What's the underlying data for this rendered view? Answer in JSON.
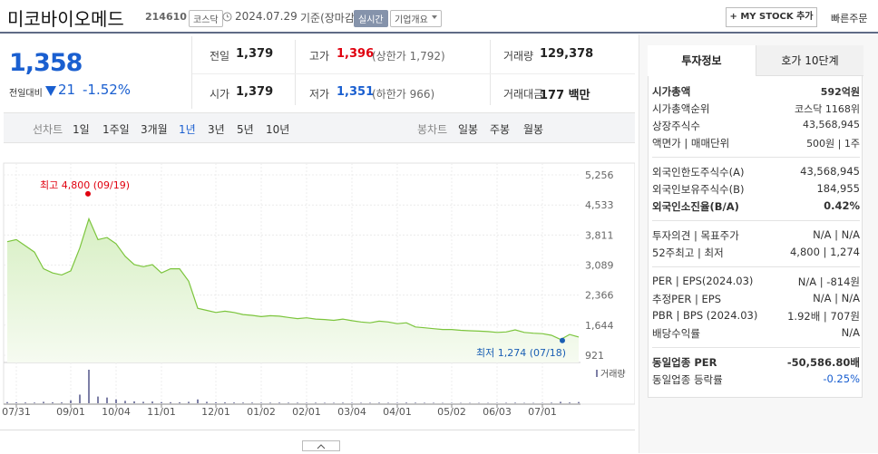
{
  "header": {
    "name": "미코바이오메드",
    "code": "214610",
    "market": "코스닥",
    "date": "2024.07.29",
    "basis": "기준(장마감)",
    "realtime": "실시간",
    "overview": "기업개요",
    "mystock": "+ MY STOCK 추가",
    "quick_order": "빠른주문"
  },
  "price": {
    "current": "1,358",
    "change_label": "전일대비",
    "change": "21",
    "change_pct": "-1.52%"
  },
  "summary": [
    {
      "label": "전일",
      "value": "1,379"
    },
    {
      "label": "고가",
      "value": "1,396",
      "note": "(상한가 1,792)"
    },
    {
      "label": "거래량",
      "value": "129,378"
    },
    {
      "label": "시가",
      "value": "1,379"
    },
    {
      "label": "저가",
      "value": "1,351",
      "note": "(하한가 966)"
    },
    {
      "label": "거래대금",
      "value": "177 백만"
    }
  ],
  "line_tabs": {
    "label": "선차트",
    "items": [
      "1일",
      "1주일",
      "3개월",
      "1년",
      "3년",
      "5년",
      "10년"
    ]
  },
  "candle_tabs": {
    "label": "봉차트",
    "items": [
      "일봉",
      "주봉",
      "월봉"
    ]
  },
  "chart_data": {
    "type": "line",
    "color": "#7cc53d",
    "categories": [
      null,
      "07/31",
      null,
      null,
      null,
      null,
      null,
      "09/01",
      null,
      null,
      null,
      null,
      "10/04",
      null,
      null,
      null,
      null,
      "11/01",
      null,
      null,
      null,
      null,
      null,
      "12/01",
      null,
      null,
      null,
      null,
      "01/02",
      null,
      null,
      null,
      null,
      "02/01",
      null,
      null,
      null,
      null,
      "03/04",
      null,
      null,
      null,
      null,
      "04/01",
      null,
      null,
      null,
      null,
      null,
      "05/02",
      null,
      null,
      null,
      null,
      "06/03",
      null,
      null,
      null,
      null,
      "07/01",
      null,
      null,
      null,
      null
    ],
    "values": [
      3650,
      3700,
      3550,
      3400,
      3000,
      2900,
      2850,
      2950,
      3500,
      4200,
      3700,
      3750,
      3600,
      3300,
      3100,
      3050,
      3100,
      2900,
      3000,
      3000,
      2700,
      2050,
      2000,
      1950,
      1980,
      1950,
      1900,
      1880,
      1850,
      1870,
      1860,
      1830,
      1800,
      1820,
      1790,
      1780,
      1760,
      1790,
      1750,
      1720,
      1700,
      1740,
      1720,
      1680,
      1700,
      1600,
      1580,
      1560,
      1540,
      1540,
      1520,
      1510,
      1500,
      1490,
      1470,
      1480,
      1530,
      1470,
      1450,
      1440,
      1400,
      1300,
      1420,
      1358
    ],
    "volume": {
      "label": "거래량",
      "color": "#7d7fa6",
      "values": [
        120000,
        90000,
        80000,
        70000,
        150000,
        100000,
        90000,
        300000,
        900000,
        3500000,
        700000,
        600000,
        400000,
        250000,
        200000,
        150000,
        180000,
        120000,
        110000,
        100000,
        150000,
        400000,
        150000,
        100000,
        90000,
        80000,
        70000,
        70000,
        60000,
        60000,
        70000,
        60000,
        60000,
        50000,
        60000,
        50000,
        50000,
        60000,
        50000,
        50000,
        50000,
        60000,
        50000,
        50000,
        70000,
        60000,
        50000,
        50000,
        40000,
        40000,
        40000,
        40000,
        40000,
        40000,
        40000,
        50000,
        60000,
        40000,
        40000,
        40000,
        60000,
        150000,
        80000,
        129378
      ]
    },
    "ylim": [
      921,
      5256
    ],
    "yticks": [
      {
        "value": 5256,
        "label": "5,256"
      },
      {
        "value": 4533,
        "label": "4,533"
      },
      {
        "value": 3811,
        "label": "3,811"
      },
      {
        "value": 3089,
        "label": "3,089"
      },
      {
        "value": 2366,
        "label": "2,366"
      },
      {
        "value": 1644,
        "label": "1,644"
      },
      {
        "value": 921,
        "label": "921"
      }
    ],
    "grid": true,
    "annotations": [
      {
        "text": "최고 4,800 (09/19)",
        "value": 4800,
        "color": "#e0000f"
      },
      {
        "text": "최저 1,274 (07/18)",
        "value": 1274,
        "color": "#1a5fb4"
      }
    ]
  },
  "invest": {
    "tabs": [
      "투자정보",
      "호가 10단계"
    ],
    "sections": [
      [
        {
          "label": "시가총액",
          "value": "592억원"
        },
        {
          "label": "시가총액순위",
          "value": "코스닥 1168위"
        },
        {
          "label": "상장주식수",
          "value": "43,568,945"
        },
        {
          "label": "액면가 | 매매단위",
          "value": "500원 | 1주"
        }
      ],
      [
        {
          "label": "외국인한도주식수(A)",
          "value": "43,568,945"
        },
        {
          "label": "외국인보유주식수(B)",
          "value": "184,955"
        },
        {
          "label": "외국인소진율(B/A)",
          "value": "0.42%"
        }
      ],
      [
        {
          "label": "투자의견 | 목표주가",
          "value": "N/A | N/A"
        },
        {
          "label": "52주최고 | 최저",
          "value": "4,800 | 1,274"
        }
      ],
      [
        {
          "label": "PER | EPS(2024.03)",
          "value": "N/A | -814원"
        },
        {
          "label": "추정PER | EPS",
          "value": "N/A | N/A"
        },
        {
          "label": "PBR | BPS (2024.03)",
          "value": "1.92배 | 707원"
        },
        {
          "label": "배당수익률",
          "value": "N/A"
        }
      ],
      [
        {
          "label": "동일업종 PER",
          "value": "-50,586.80배"
        },
        {
          "label": "동일업종 등락률",
          "value": "-0.25%"
        }
      ]
    ]
  }
}
